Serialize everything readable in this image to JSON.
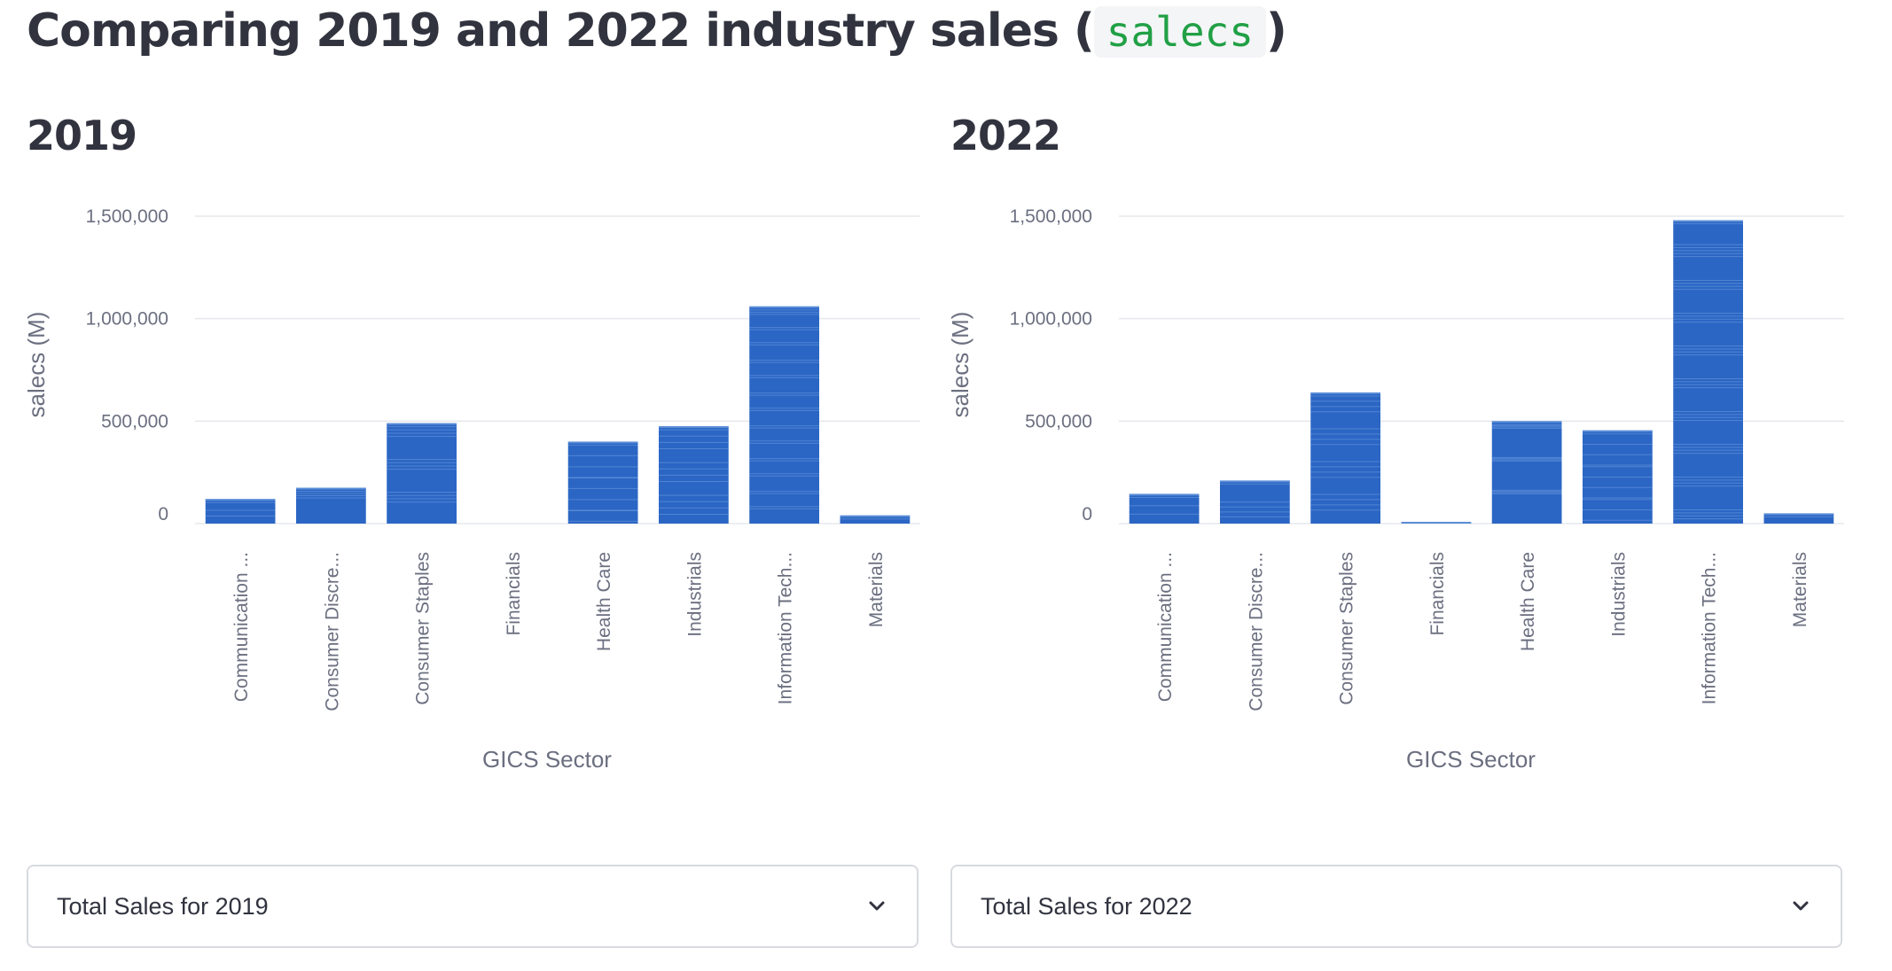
{
  "header": {
    "title_prefix": "Comparing 2019 and 2022 industry sales (",
    "title_code": "salecs",
    "title_suffix": ")"
  },
  "panels": [
    {
      "heading": "2019",
      "expander_label": "Total Sales for 2019",
      "expander_icon": "chevron-down-icon"
    },
    {
      "heading": "2022",
      "expander_label": "Total Sales for 2022",
      "expander_icon": "chevron-down-icon"
    }
  ],
  "colors": {
    "bar": "#2b66c4",
    "bar_stripe": "#6f9ee0",
    "grid": "#e6e8ed",
    "text": "#31333f"
  },
  "chart_data": [
    {
      "type": "bar",
      "title": "2019",
      "xlabel": "GICS Sector",
      "ylabel": "salecs (M)",
      "ylim": [
        0,
        1500000
      ],
      "yticks": [
        0,
        500000,
        1000000,
        1500000
      ],
      "ytick_labels": [
        "0",
        "500,000",
        "1,000,000",
        "1,500,000"
      ],
      "grid": true,
      "categories": [
        "Communication ...",
        "Consumer Discre...",
        "Consumer Staples",
        "Financials",
        "Health Care",
        "Industrials",
        "Information Tech...",
        "Materials"
      ],
      "values": [
        120000,
        175000,
        490000,
        0,
        400000,
        475000,
        1060000,
        40000
      ]
    },
    {
      "type": "bar",
      "title": "2022",
      "xlabel": "GICS Sector",
      "ylabel": "salecs (M)",
      "ylim": [
        0,
        1500000
      ],
      "yticks": [
        0,
        500000,
        1000000,
        1500000
      ],
      "ytick_labels": [
        "0",
        "500,000",
        "1,000,000",
        "1,500,000"
      ],
      "grid": true,
      "categories": [
        "Communication ...",
        "Consumer Discre...",
        "Consumer Staples",
        "Financials",
        "Health Care",
        "Industrials",
        "Information Tech...",
        "Materials"
      ],
      "values": [
        145000,
        210000,
        640000,
        5000,
        500000,
        455000,
        1480000,
        50000
      ]
    }
  ]
}
